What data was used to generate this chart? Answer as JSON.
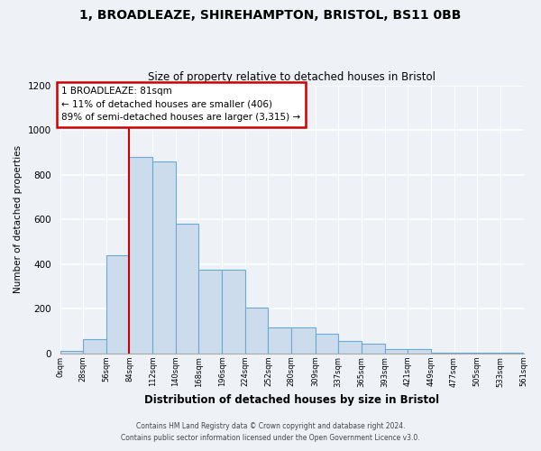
{
  "title1": "1, BROADLEAZE, SHIREHAMPTON, BRISTOL, BS11 0BB",
  "title2": "Size of property relative to detached houses in Bristol",
  "xlabel": "Distribution of detached houses by size in Bristol",
  "ylabel": "Number of detached properties",
  "bar_color": "#ccdcec",
  "bar_edge_color": "#6aaad4",
  "background_color": "#eef2f7",
  "grid_color": "#ffffff",
  "bin_edges": [
    0,
    28,
    56,
    84,
    112,
    140,
    168,
    196,
    224,
    252,
    280,
    309,
    337,
    365,
    393,
    421,
    449,
    477,
    505,
    533,
    561
  ],
  "bar_heights": [
    10,
    65,
    440,
    880,
    860,
    580,
    375,
    375,
    205,
    115,
    115,
    90,
    55,
    45,
    18,
    18,
    5,
    5,
    5,
    5
  ],
  "tick_labels": [
    "0sqm",
    "28sqm",
    "56sqm",
    "84sqm",
    "112sqm",
    "140sqm",
    "168sqm",
    "196sqm",
    "224sqm",
    "252sqm",
    "280sqm",
    "309sqm",
    "337sqm",
    "365sqm",
    "393sqm",
    "421sqm",
    "449sqm",
    "477sqm",
    "505sqm",
    "533sqm",
    "561sqm"
  ],
  "vline_x": 84,
  "vline_color": "#cc0000",
  "annotation_box_color": "#cc0000",
  "annotation_line1": "1 BROADLEAZE: 81sqm",
  "annotation_line2": "← 11% of detached houses are smaller (406)",
  "annotation_line3": "89% of semi-detached houses are larger (3,315) →",
  "ylim": [
    0,
    1200
  ],
  "yticks": [
    0,
    200,
    400,
    600,
    800,
    1000,
    1200
  ],
  "footer1": "Contains HM Land Registry data © Crown copyright and database right 2024.",
  "footer2": "Contains public sector information licensed under the Open Government Licence v3.0."
}
